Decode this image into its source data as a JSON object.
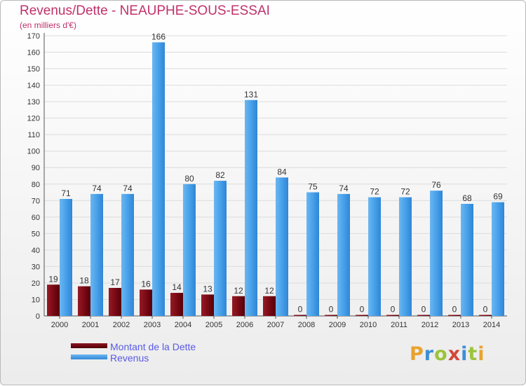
{
  "title": "Revenus/Dette - NEAUPHE-SOUS-ESSAI",
  "subtitle": "(en milliers d'€)",
  "legend": {
    "debt": "Montant de la Dette",
    "revenue": "Revenus"
  },
  "logo": {
    "letters": [
      "P",
      "r",
      "o",
      "x",
      "i",
      "t",
      "i"
    ],
    "colors": [
      "#e8a32c",
      "#3d8fd6",
      "#9cc43a",
      "#d3473a",
      "#3d8fd6",
      "#9cc43a",
      "#e8a32c"
    ]
  },
  "colors": {
    "debt": "#7a0a14",
    "revenue": "#3d9be9",
    "title": "#c0306a",
    "legend_text": "#5a5ae6"
  },
  "chart_data": {
    "type": "bar",
    "categories": [
      "2000",
      "2001",
      "2002",
      "2003",
      "2004",
      "2005",
      "2006",
      "2007",
      "2008",
      "2009",
      "2010",
      "2011",
      "2012",
      "2013",
      "2014"
    ],
    "series": [
      {
        "name": "Montant de la Dette",
        "values": [
          19,
          18,
          17,
          16,
          14,
          13,
          12,
          12,
          0,
          0,
          0,
          0,
          0,
          0,
          0
        ]
      },
      {
        "name": "Revenus",
        "values": [
          71,
          74,
          74,
          166,
          80,
          82,
          131,
          84,
          75,
          74,
          72,
          72,
          76,
          68,
          69
        ]
      }
    ],
    "title": "Revenus/Dette - NEAUPHE-SOUS-ESSAI",
    "subtitle": "(en milliers d'€)",
    "ylim": [
      0,
      170
    ],
    "ytick_step": 10,
    "grid": true,
    "legend_position": "bottom-left"
  }
}
